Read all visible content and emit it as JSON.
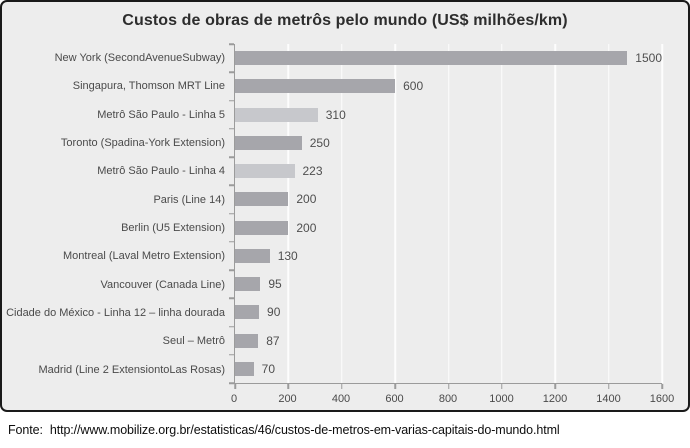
{
  "chart_data": {
    "type": "bar",
    "orientation": "horizontal",
    "title": "Custos de obras de metrôs pelo mundo (US$ milhões/km)",
    "categories": [
      "New York (SecondAvenueSubway)",
      "Singapura, Thomson MRT Line",
      "Metrô São Paulo - Linha 5",
      "Toronto (Spadina-York Extension)",
      "Metrô São Paulo - Linha 4",
      "Paris (Line 14)",
      "Berlin (U5 Extension)",
      "Montreal (Laval Metro Extension)",
      "Vancouver (Canada Line)",
      "Cidade do México - Linha 12 – linha dourada",
      "Seul – Metrô",
      "Madrid (Line 2 ExtensiontoLas Rosas)"
    ],
    "values": [
      1500,
      600,
      310,
      250,
      223,
      200,
      200,
      130,
      95,
      90,
      87,
      70
    ],
    "highlight_flags": [
      false,
      false,
      true,
      false,
      true,
      false,
      false,
      false,
      false,
      false,
      false,
      false
    ],
    "xlim": [
      0,
      1600
    ],
    "xticks": [
      0,
      200,
      400,
      600,
      800,
      1000,
      1200,
      1400,
      1600
    ],
    "xlabel": "",
    "ylabel": "",
    "grid": true,
    "legend": false,
    "bar_color": "#a6a6ab",
    "highlight_color": "#c7c8cc",
    "background_color": "#ededed",
    "border_color": "#1a1a1a"
  },
  "footer": {
    "source_label": "Fonte:",
    "source_url": "http://www.mobilize.org.br/estatisticas/46/custos-de-metros-em-varias-capitais-do-mundo.html"
  }
}
